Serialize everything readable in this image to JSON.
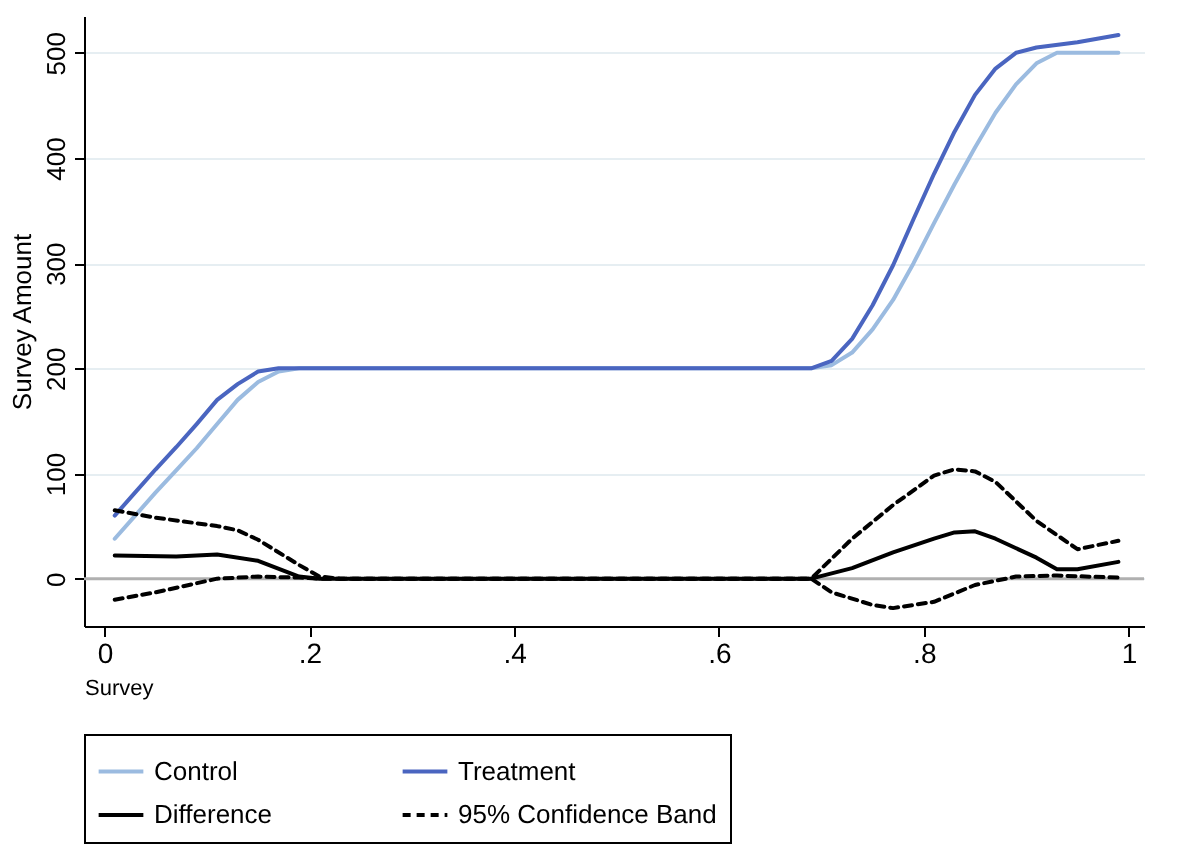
{
  "chart_data": {
    "type": "line",
    "xlabel": "Survey",
    "ylabel": "Survey Amount",
    "xlim": [
      -0.02,
      1.015
    ],
    "ylim": [
      -45,
      535
    ],
    "xticks": [
      0,
      {
        "value": 0.2,
        "label": ".2"
      },
      {
        "value": 0.4,
        "label": ".4"
      },
      {
        "value": 0.6,
        "label": ".6"
      },
      {
        "value": 0.8,
        "label": ".8"
      },
      1
    ],
    "yticks": [
      0,
      100,
      200,
      300,
      400,
      500
    ],
    "grid": "y",
    "legend": "bottom",
    "marker": "none",
    "ref_lines": [
      {
        "axis": "y",
        "value": 0,
        "color": "#b0b0b0"
      }
    ],
    "series": [
      {
        "name": "Control",
        "color": "#9bbbe0",
        "line_style": "solid",
        "x": [
          0.01,
          0.03,
          0.05,
          0.07,
          0.09,
          0.11,
          0.13,
          0.15,
          0.17,
          0.19,
          0.69,
          0.71,
          0.73,
          0.75,
          0.77,
          0.79,
          0.81,
          0.83,
          0.85,
          0.87,
          0.89,
          0.91,
          0.93,
          0.95,
          0.99
        ],
        "values": [
          38,
          60,
          82,
          103,
          124,
          147,
          170,
          187,
          197,
          200,
          200,
          203,
          215,
          237,
          265,
          300,
          338,
          375,
          410,
          443,
          470,
          490,
          500,
          500,
          500
        ]
      },
      {
        "name": "Treatment",
        "color": "#4a65c0",
        "line_style": "solid",
        "x": [
          0.01,
          0.03,
          0.05,
          0.07,
          0.09,
          0.11,
          0.13,
          0.15,
          0.17,
          0.69,
          0.71,
          0.73,
          0.75,
          0.77,
          0.79,
          0.81,
          0.83,
          0.85,
          0.87,
          0.89,
          0.91,
          0.95,
          0.99
        ],
        "values": [
          60,
          82,
          104,
          125,
          147,
          170,
          185,
          197,
          200,
          200,
          207,
          228,
          260,
          298,
          342,
          385,
          425,
          460,
          485,
          500,
          505,
          510,
          517
        ]
      },
      {
        "name": "Difference",
        "color": "#000000",
        "line_style": "solid",
        "x": [
          0.01,
          0.07,
          0.11,
          0.15,
          0.19,
          0.21,
          0.69,
          0.73,
          0.77,
          0.81,
          0.83,
          0.85,
          0.87,
          0.91,
          0.93,
          0.95,
          0.99
        ],
        "values": [
          22,
          21,
          23,
          17,
          2,
          0,
          0,
          10,
          25,
          38,
          44,
          45,
          38,
          20,
          9,
          9,
          16
        ]
      },
      {
        "name": "95% Confidence Band",
        "color": "#000000",
        "line_style": "dashed",
        "x": [
          0.01,
          0.05,
          0.11,
          0.13,
          0.15,
          0.19,
          0.21,
          0.23,
          0.69,
          0.73,
          0.77,
          0.81,
          0.83,
          0.85,
          0.87,
          0.91,
          0.95,
          0.99
        ],
        "values": [
          65,
          58,
          50,
          46,
          37,
          13,
          2,
          0,
          0,
          38,
          70,
          98,
          104,
          102,
          92,
          55,
          28,
          36
        ]
      },
      {
        "color": "#000000",
        "line_style": "dashed",
        "x": [
          0.01,
          0.05,
          0.11,
          0.15,
          0.19,
          0.21,
          0.69,
          0.71,
          0.75,
          0.77,
          0.81,
          0.85,
          0.89,
          0.93,
          0.99
        ],
        "values": [
          -20,
          -13,
          0,
          2,
          1,
          0,
          0,
          -13,
          -25,
          -28,
          -22,
          -6,
          2,
          3,
          1
        ]
      }
    ]
  }
}
